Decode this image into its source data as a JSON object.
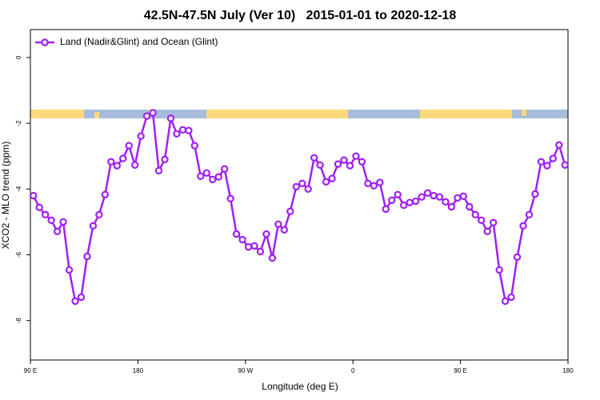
{
  "chart_data": {
    "type": "line",
    "title": "42.5N-47.5N July (Ver 10)   2015-01-01 to 2020-12-18",
    "x_label": "Longitude (deg E)",
    "y_label": "XCO2 - MLO trend (ppm)",
    "legend": "upper left",
    "xlim": [
      90,
      540
    ],
    "ylim": [
      -9.2,
      0.85
    ],
    "xticks": [
      {
        "value": 90,
        "label": "90 E"
      },
      180,
      {
        "value": 270,
        "label": "90 W"
      },
      {
        "value": 360,
        "label": "0"
      },
      {
        "value": 450,
        "label": "90 E"
      },
      {
        "value": 540,
        "label": "180"
      }
    ],
    "yticks": [
      0,
      -2,
      -4,
      -6,
      -8
    ],
    "x": [
      92.5,
      97.5,
      102.5,
      107.5,
      112.5,
      117.5,
      122.5,
      127.5,
      132.5,
      137.5,
      142.5,
      147.5,
      152.5,
      157.5,
      162.5,
      167.5,
      172.5,
      177.5,
      182.5,
      187.5,
      192.5,
      197.5,
      202.5,
      207.5,
      212.5,
      217.5,
      222.5,
      227.5,
      232.5,
      237.5,
      242.5,
      247.5,
      252.5,
      257.5,
      262.5,
      267.5,
      272.5,
      277.5,
      282.5,
      287.5,
      292.5,
      297.5,
      302.5,
      307.5,
      312.5,
      317.5,
      322.5,
      327.5,
      332.5,
      337.5,
      342.5,
      347.5,
      352.5,
      357.5,
      362.5,
      367.5,
      372.5,
      377.5,
      382.5,
      387.5,
      392.5,
      397.5,
      402.5,
      407.5,
      412.5,
      417.5,
      422.5,
      427.5,
      432.5,
      437.5,
      442.5,
      447.5,
      452.5,
      457.5,
      462.5,
      467.5,
      472.5,
      477.5,
      482.5,
      487.5,
      492.5,
      497.5,
      502.5,
      507.5,
      512.5,
      517.5,
      522.5,
      527.5,
      532.5,
      537.5
    ],
    "series": [
      {
        "name": "Land (Nadir&Glint) and Ocean (Glint)",
        "color": "#a020f0",
        "values": [
          -4.2,
          -4.56,
          -4.78,
          -4.95,
          -5.29,
          -5.0,
          -6.46,
          -7.41,
          -7.29,
          -6.05,
          -5.12,
          -4.78,
          -4.17,
          -3.17,
          -3.29,
          -3.07,
          -2.68,
          -3.27,
          -2.39,
          -1.78,
          -1.68,
          -3.44,
          -3.1,
          -1.85,
          -2.32,
          -2.2,
          -2.22,
          -2.68,
          -3.61,
          -3.51,
          -3.71,
          -3.63,
          -3.39,
          -4.29,
          -5.37,
          -5.54,
          -5.76,
          -5.73,
          -5.9,
          -5.37,
          -6.1,
          -5.07,
          -5.24,
          -4.68,
          -3.93,
          -3.83,
          -4.0,
          -3.05,
          -3.27,
          -3.78,
          -3.68,
          -3.24,
          -3.12,
          -3.29,
          -3.0,
          -3.17,
          -3.83,
          -3.9,
          -3.8,
          -4.61,
          -4.34,
          -4.17,
          -4.49,
          -4.41,
          -4.37,
          -4.24,
          -4.12,
          -4.2,
          -4.24,
          -4.39,
          -4.54,
          -4.27,
          -4.22,
          -4.54,
          -4.78,
          -4.95,
          -5.29,
          -5.02,
          -6.46,
          -7.41,
          -7.29,
          -6.07,
          -5.12,
          -4.78,
          -4.15,
          -3.17,
          -3.29,
          -3.07,
          -2.66,
          -3.27
        ]
      }
    ]
  }
}
